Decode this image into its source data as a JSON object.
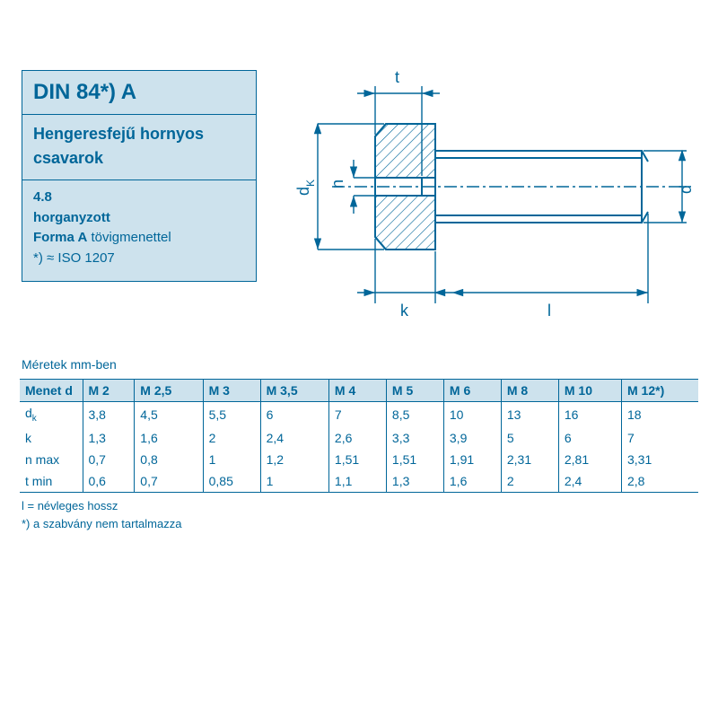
{
  "colors": {
    "stroke": "#006699",
    "boxfill": "#cde2ed",
    "hatch": "#006699",
    "bg": "#ffffff"
  },
  "infobox": {
    "title": "DIN 84*) A",
    "subtitle_line1": "Hengeresfejű hornyos",
    "subtitle_line2": "csavarok",
    "detail1": "4.8",
    "detail2": "horganyzott",
    "detail3_bold": "Forma A",
    "detail3_rest": " tövigmenettel",
    "detail4": "*) ≈ ISO 1207"
  },
  "diagram": {
    "labels": {
      "t": "t",
      "n": "n",
      "dk": "d",
      "dk_sub": "K",
      "k": "k",
      "l": "l",
      "d": "d"
    }
  },
  "table": {
    "caption": "Méretek mm-ben",
    "header": [
      "Menet d",
      "M 2",
      "M 2,5",
      "M 3",
      "M 3,5",
      "M 4",
      "M 5",
      "M 6",
      "M 8",
      "M 10",
      "M 12*)"
    ],
    "rows": [
      {
        "label": "d",
        "sub": "k",
        "cells": [
          "3,8",
          "4,5",
          "5,5",
          "6",
          "7",
          "8,5",
          "10",
          "13",
          "16",
          "18"
        ]
      },
      {
        "label": "k",
        "sub": "",
        "cells": [
          "1,3",
          "1,6",
          "2",
          "2,4",
          "2,6",
          "3,3",
          "3,9",
          "5",
          "6",
          "7"
        ]
      },
      {
        "label": "n max",
        "sub": "",
        "cells": [
          "0,7",
          "0,8",
          "1",
          "1,2",
          "1,51",
          "1,51",
          "1,91",
          "2,31",
          "2,81",
          "3,31"
        ]
      },
      {
        "label": "t min",
        "sub": "",
        "cells": [
          "0,6",
          "0,7",
          "0,85",
          "1",
          "1,1",
          "1,3",
          "1,6",
          "2",
          "2,4",
          "2,8"
        ]
      }
    ]
  },
  "footnotes": {
    "line1": "l = névleges hossz",
    "line2": "*) a szabvány nem tartalmazza"
  }
}
